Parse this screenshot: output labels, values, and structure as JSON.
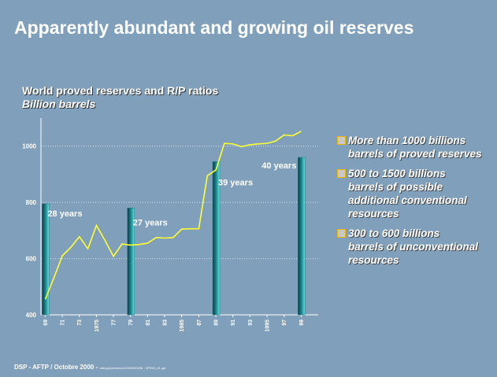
{
  "title": "Apparently abundant and growing oil reserves",
  "chart_data": {
    "type": "line",
    "title": "World proved reserves and R/P ratios",
    "subtitle": "Billion barrels",
    "x": [
      1969,
      1970,
      1971,
      1972,
      1973,
      1974,
      1975,
      1976,
      1977,
      1978,
      1979,
      1980,
      1981,
      1982,
      1983,
      1984,
      1985,
      1986,
      1987,
      1988,
      1989,
      1990,
      1991,
      1992,
      1993,
      1994,
      1995,
      1996,
      1997,
      1998,
      1999
    ],
    "series": [
      {
        "color": "#ffff33",
        "values": [
          455,
          530,
          610,
          640,
          678,
          635,
          718,
          665,
          608,
          652,
          648,
          650,
          655,
          675,
          673,
          675,
          705,
          706,
          706,
          895,
          915,
          1010,
          1008,
          998,
          1005,
          1008,
          1010,
          1018,
          1040,
          1037,
          1053
        ]
      }
    ],
    "bars": {
      "x": [
        1969,
        1979,
        1989,
        1999
      ],
      "values": [
        795,
        780,
        945,
        960
      ],
      "color": "#1a7a80",
      "labels": [
        "28 years",
        "27 years",
        "39 years",
        "40 years"
      ]
    },
    "xlim": [
      1968.5,
      2001
    ],
    "xticks": [
      {
        "value": 1969,
        "label": "69"
      },
      {
        "value": 1971,
        "label": "71"
      },
      {
        "value": 1973,
        "label": "73"
      },
      1975,
      {
        "value": 1977,
        "label": "77"
      },
      {
        "value": 1979,
        "label": "79"
      },
      {
        "value": 1981,
        "label": "81"
      },
      {
        "value": 1983,
        "label": "83"
      },
      1985,
      {
        "value": 1987,
        "label": "87"
      },
      {
        "value": 1989,
        "label": "89"
      },
      {
        "value": 1991,
        "label": "91"
      },
      {
        "value": 1993,
        "label": "93"
      },
      1995,
      {
        "value": 1997,
        "label": "97"
      },
      {
        "value": 1999,
        "label": "99"
      }
    ],
    "ylim": [
      400,
      1100
    ],
    "yticks": [
      400,
      600,
      800,
      1000
    ],
    "grid": true
  },
  "notes": [
    [
      "More than 1000 billions",
      "barrels of proved reserves"
    ],
    [
      "500 to 1500 billions",
      "barrels of possible additional conventional resources"
    ],
    [
      "300 to 600 billions",
      "barrels of unconventional resources"
    ]
  ],
  "footer": {
    "main": "DSP - AFTP / Octobre 2000 - ",
    "path": "mlk/ppt/presid/cert1000000036 - 0PR99_01.ppt"
  }
}
